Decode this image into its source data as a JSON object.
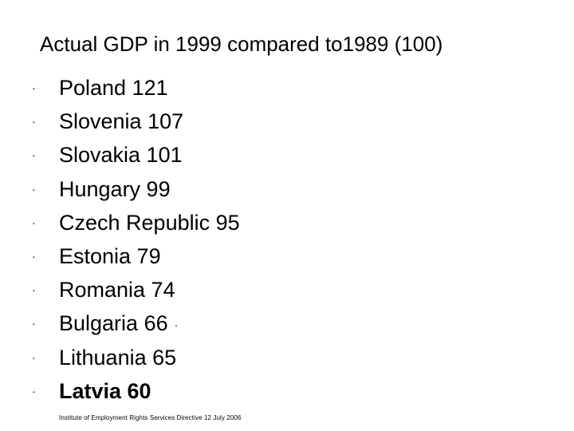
{
  "title": "Actual GDP in 1999 compared to1989 (100)",
  "bullet_char": "·",
  "items": [
    {
      "text": "Poland 121",
      "trail": ""
    },
    {
      "text": "Slovenia 107",
      "trail": ""
    },
    {
      "text": "Slovakia 101",
      "trail": ""
    },
    {
      "text": "Hungary 99",
      "trail": ""
    },
    {
      "text": "Czech Republic 95",
      "trail": ""
    },
    {
      "text": "Estonia 79",
      "trail": ""
    },
    {
      "text": "Romania 74",
      "trail": ""
    },
    {
      "text": "Bulgaria 66",
      "trail": "·"
    },
    {
      "text": "Lithuania 65",
      "trail": ""
    },
    {
      "text": "Latvia 60",
      "trail": ""
    }
  ],
  "footer": "Institute of Employment Rights Services Directive 12 July 2006"
}
